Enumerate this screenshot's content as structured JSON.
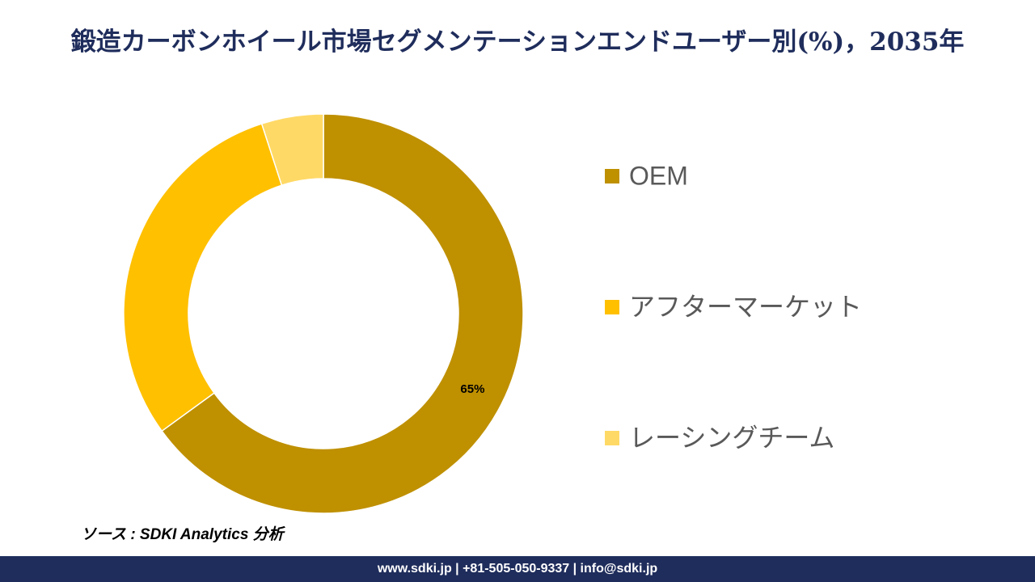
{
  "chart_data": {
    "type": "donut",
    "title": "鍛造カーボンホイール市場セグメンテーションエンドユーザー別(%)，2035年",
    "categories": [
      "OEM",
      "アフターマーケット",
      "レーシングチーム"
    ],
    "values": [
      65,
      30,
      5
    ],
    "value_labels": [
      "65%",
      null,
      null
    ],
    "colors": [
      "#bf9000",
      "#ffc000",
      "#ffd966"
    ],
    "legend": "right"
  },
  "source": "ソース : SDKI Analytics 分析",
  "footer": "www.sdki.jp | +81-505-050-9337 | info@sdki.jp"
}
